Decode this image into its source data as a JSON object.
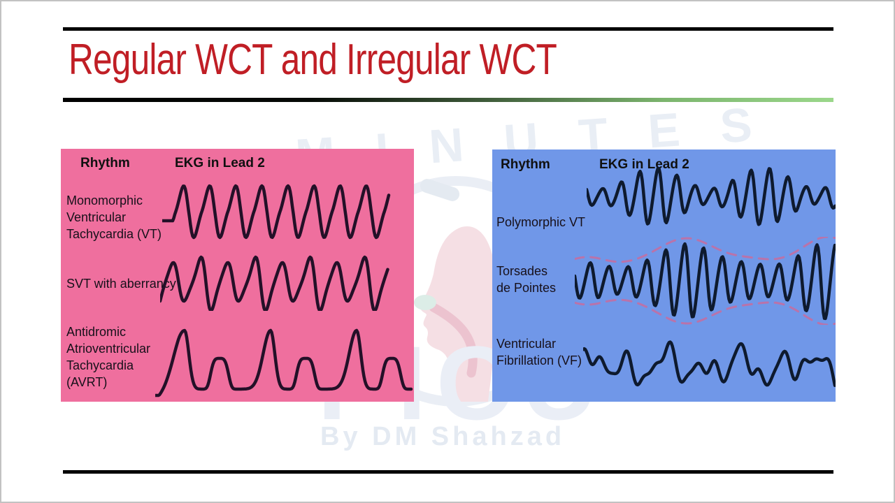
{
  "slide": {
    "title": "Regular WCT and Irregular WCT"
  },
  "colors": {
    "title_red": "#c01e25",
    "left_panel_bg": "#ef6f9e",
    "right_panel_bg": "#7097e8",
    "left_wave": "#241028",
    "right_wave": "#0e1a2e",
    "torsades_envelope": "#cc6a9a",
    "divider_green": "#9bd78b"
  },
  "watermark": {
    "arc_text": "MINUTES",
    "brand_text": "PICU",
    "byline": "By DM Shahzad"
  },
  "left_panel": {
    "col_rhythm": "Rhythm",
    "col_ekg": "EKG in Lead 2",
    "rows": [
      {
        "label": "Monomorphic\nVentricular\nTachycardia (VT)"
      },
      {
        "label": "SVT with aberrancy"
      },
      {
        "label": "Antidromic\nAtrioventricular\nTachycardia\n(AVRT)"
      }
    ]
  },
  "right_panel": {
    "col_rhythm": "Rhythm",
    "col_ekg": "EKG in Lead 2",
    "rows": [
      {
        "label": "Polymorphic VT"
      },
      {
        "label": "Torsades\nde Pointes"
      },
      {
        "label": "Ventricular\nFibrillation (VF)"
      }
    ]
  }
}
